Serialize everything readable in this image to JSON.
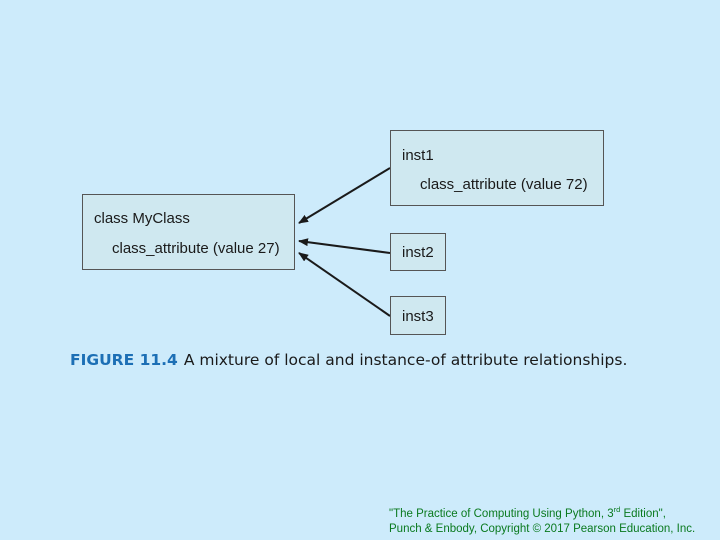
{
  "class_box": {
    "title": "class MyClass",
    "attribute": "class_attribute (value 27)"
  },
  "instances": [
    {
      "title": "inst1",
      "attribute": "class_attribute (value 72)"
    },
    {
      "title": "inst2"
    },
    {
      "title": "inst3"
    }
  ],
  "caption": {
    "label": "FIGURE 11.4",
    "text": "A mixture of local and instance-of attribute relationships."
  },
  "footer": {
    "line1_prefix": "\"The Practice of Computing Using Python, 3",
    "line1_sup": "rd",
    "line1_suffix": " Edition\",",
    "line2": "Punch & Enbody, Copyright © 2017 Pearson Education, Inc."
  },
  "colors": {
    "background": "#cdebfb",
    "box_fill": "#cfe8f0",
    "caption_label": "#1c6fb5",
    "footer_text": "#0a7a1f"
  }
}
